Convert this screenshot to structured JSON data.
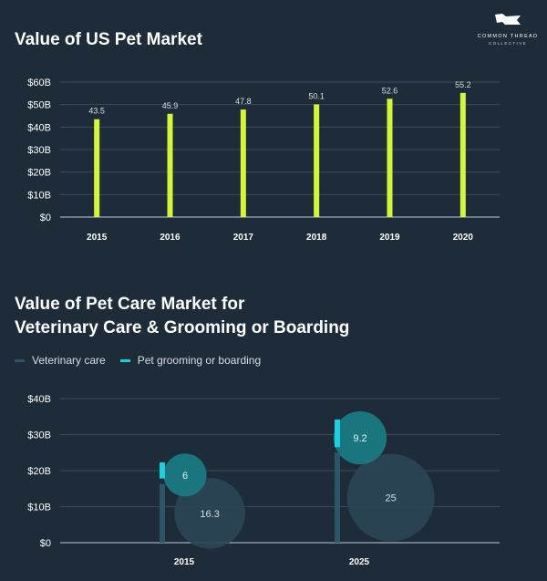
{
  "brand": {
    "line1": "COMMON THREAD",
    "line2": "COLLECTIVE"
  },
  "colors": {
    "background": "#1e2b38",
    "bar": "#d4f53c",
    "vet": "#2d5469",
    "groom": "#1ccfe0",
    "bubble_vet": "#2a4656",
    "bubble_groom": "#197a82",
    "grid": "#3a4b5a"
  },
  "chart_data": [
    {
      "type": "bar",
      "title": "Value of US Pet Market",
      "categories": [
        "2015",
        "2016",
        "2017",
        "2018",
        "2019",
        "2020"
      ],
      "values": [
        43.5,
        45.9,
        47.8,
        50.1,
        52.6,
        55.2
      ],
      "ylim": [
        0,
        60
      ],
      "yticks": [
        "$0",
        "$10B",
        "$20B",
        "$30B",
        "$40B",
        "$50B",
        "$60B"
      ],
      "xlabel": "",
      "ylabel": "",
      "grid": true
    },
    {
      "type": "bar",
      "title_lines": [
        "Value of Pet Care Market for",
        "Veterinary Care & Grooming or Boarding"
      ],
      "categories": [
        "2015",
        "2025"
      ],
      "series": [
        {
          "name": "Veterinary care",
          "values": [
            16.3,
            25
          ]
        },
        {
          "name": "Pet grooming or boarding",
          "values": [
            6,
            9.2
          ]
        }
      ],
      "stacked": true,
      "ylim": [
        0,
        40
      ],
      "yticks": [
        "$0",
        "$10B",
        "$20B",
        "$30B",
        "$40B"
      ],
      "xlabel": "",
      "ylabel": "",
      "grid": true,
      "legend": "top-left"
    }
  ]
}
